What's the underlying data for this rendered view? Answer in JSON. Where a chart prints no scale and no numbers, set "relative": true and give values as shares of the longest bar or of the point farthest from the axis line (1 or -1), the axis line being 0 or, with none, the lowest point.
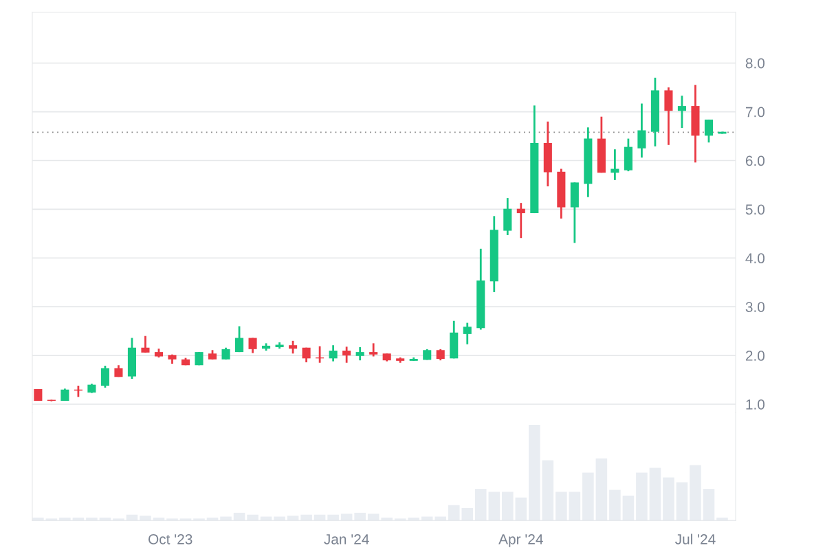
{
  "chart_data": [
    {
      "type": "candlestick",
      "x": [
        "2023-07-24",
        "2023-07-31",
        "2023-08-07",
        "2023-08-14",
        "2023-08-21",
        "2023-08-28",
        "2023-09-04",
        "2023-09-11",
        "2023-09-18",
        "2023-09-25",
        "2023-10-02",
        "2023-10-09",
        "2023-10-16",
        "2023-10-23",
        "2023-10-30",
        "2023-11-06",
        "2023-11-13",
        "2023-11-20",
        "2023-11-27",
        "2023-12-04",
        "2023-12-11",
        "2023-12-18",
        "2023-12-25",
        "2024-01-01",
        "2024-01-08",
        "2024-01-15",
        "2024-01-22",
        "2024-01-29",
        "2024-02-05",
        "2024-02-12",
        "2024-02-19",
        "2024-02-26",
        "2024-03-04",
        "2024-03-11",
        "2024-03-18",
        "2024-03-25",
        "2024-04-01",
        "2024-04-08",
        "2024-04-15",
        "2024-04-22",
        "2024-04-29",
        "2024-05-06",
        "2024-05-13",
        "2024-05-20",
        "2024-05-27",
        "2024-06-03",
        "2024-06-10",
        "2024-06-17",
        "2024-06-24",
        "2024-07-01",
        "2024-07-08",
        "2024-07-15"
      ],
      "ohlc": [
        [
          1.31,
          1.31,
          1.07,
          1.07
        ],
        [
          1.09,
          1.09,
          1.06,
          1.07
        ],
        [
          1.07,
          1.32,
          1.07,
          1.3
        ],
        [
          1.3,
          1.38,
          1.15,
          1.28
        ],
        [
          1.24,
          1.42,
          1.23,
          1.4
        ],
        [
          1.38,
          1.79,
          1.34,
          1.74
        ],
        [
          1.74,
          1.8,
          1.56,
          1.56
        ],
        [
          1.57,
          2.36,
          1.52,
          2.16
        ],
        [
          2.16,
          2.4,
          2.06,
          2.06
        ],
        [
          2.07,
          2.14,
          1.96,
          1.98
        ],
        [
          2.01,
          2.02,
          1.83,
          1.92
        ],
        [
          1.92,
          1.95,
          1.8,
          1.8
        ],
        [
          1.8,
          2.07,
          1.8,
          2.07
        ],
        [
          2.04,
          2.11,
          1.92,
          1.92
        ],
        [
          1.92,
          2.16,
          1.92,
          2.13
        ],
        [
          2.07,
          2.6,
          2.07,
          2.36
        ],
        [
          2.36,
          2.36,
          2.05,
          2.13
        ],
        [
          2.14,
          2.25,
          2.1,
          2.2
        ],
        [
          2.17,
          2.27,
          2.14,
          2.22
        ],
        [
          2.21,
          2.3,
          2.04,
          2.14
        ],
        [
          2.16,
          2.16,
          1.86,
          1.94
        ],
        [
          1.96,
          2.19,
          1.85,
          1.94
        ],
        [
          1.94,
          2.21,
          1.88,
          2.1
        ],
        [
          2.1,
          2.18,
          1.85,
          2.0
        ],
        [
          1.99,
          2.17,
          1.9,
          2.07
        ],
        [
          2.07,
          2.25,
          1.98,
          2.02
        ],
        [
          2.04,
          2.04,
          1.88,
          1.9
        ],
        [
          1.94,
          1.96,
          1.85,
          1.89
        ],
        [
          1.89,
          1.96,
          1.89,
          1.93
        ],
        [
          1.91,
          2.13,
          1.91,
          2.11
        ],
        [
          2.11,
          2.13,
          1.9,
          1.93
        ],
        [
          1.94,
          2.71,
          1.94,
          2.47
        ],
        [
          2.44,
          2.67,
          2.23,
          2.59
        ],
        [
          2.56,
          4.19,
          2.53,
          3.54
        ],
        [
          3.52,
          4.86,
          3.3,
          4.58
        ],
        [
          4.56,
          5.23,
          4.47,
          5.01
        ],
        [
          5.01,
          5.13,
          4.41,
          4.92
        ],
        [
          4.92,
          7.13,
          4.92,
          6.36
        ],
        [
          6.36,
          6.8,
          5.47,
          5.76
        ],
        [
          5.77,
          5.83,
          4.81,
          5.04
        ],
        [
          5.04,
          5.55,
          4.31,
          5.55
        ],
        [
          5.52,
          6.68,
          5.25,
          6.45
        ],
        [
          6.45,
          6.9,
          5.75,
          5.75
        ],
        [
          5.75,
          6.23,
          5.6,
          5.83
        ],
        [
          5.8,
          6.45,
          5.78,
          6.28
        ],
        [
          6.25,
          7.17,
          6.06,
          6.62
        ],
        [
          6.59,
          7.7,
          6.29,
          7.44
        ],
        [
          7.44,
          7.5,
          6.32,
          7.02
        ],
        [
          7.02,
          7.33,
          6.67,
          7.12
        ],
        [
          7.12,
          7.55,
          5.96,
          6.51
        ],
        [
          6.51,
          6.84,
          6.37,
          6.84
        ],
        [
          6.55,
          6.59,
          6.55,
          6.59
        ]
      ],
      "colors": [
        "#ea3943",
        "#ea3943",
        "#16c784",
        "#ea3943",
        "#16c784",
        "#16c784",
        "#ea3943",
        "#16c784",
        "#ea3943",
        "#ea3943",
        "#ea3943",
        "#ea3943",
        "#16c784",
        "#ea3943",
        "#16c784",
        "#16c784",
        "#ea3943",
        "#16c784",
        "#16c784",
        "#ea3943",
        "#ea3943",
        "#ea3943",
        "#16c784",
        "#ea3943",
        "#16c784",
        "#ea3943",
        "#ea3943",
        "#ea3943",
        "#16c784",
        "#16c784",
        "#ea3943",
        "#16c784",
        "#16c784",
        "#16c784",
        "#16c784",
        "#16c784",
        "#ea3943",
        "#16c784",
        "#ea3943",
        "#ea3943",
        "#16c784",
        "#16c784",
        "#ea3943",
        "#16c784",
        "#16c784",
        "#16c784",
        "#16c784",
        "#ea3943",
        "#16c784",
        "#ea3943",
        "#16c784",
        "#16c784"
      ],
      "xlim": [
        "2023-07-21",
        "2024-07-22"
      ],
      "ylim": [
        0.83,
        9.04
      ],
      "yticks": [
        {
          "value": 1,
          "label": "1.0"
        },
        {
          "value": 2,
          "label": "2.0"
        },
        {
          "value": 3,
          "label": "3.0"
        },
        {
          "value": 4,
          "label": "4.0"
        },
        {
          "value": 5,
          "label": "5.0"
        },
        {
          "value": 6,
          "label": "6.0"
        },
        {
          "value": 7,
          "label": "7.0"
        },
        {
          "value": 8,
          "label": "8.0"
        }
      ],
      "ref_lines": [
        {
          "axis": "y",
          "value": 6.58,
          "color": "#8c8c8c",
          "line_style": "dotted"
        }
      ],
      "grid": "y",
      "tick_labels": "y"
    },
    {
      "type": "bar",
      "x": [
        "2023-07-24",
        "2023-07-31",
        "2023-08-07",
        "2023-08-14",
        "2023-08-21",
        "2023-08-28",
        "2023-09-04",
        "2023-09-11",
        "2023-09-18",
        "2023-09-25",
        "2023-10-02",
        "2023-10-09",
        "2023-10-16",
        "2023-10-23",
        "2023-10-30",
        "2023-11-06",
        "2023-11-13",
        "2023-11-20",
        "2023-11-27",
        "2023-12-04",
        "2023-12-11",
        "2023-12-18",
        "2023-12-25",
        "2024-01-01",
        "2024-01-08",
        "2024-01-15",
        "2024-01-22",
        "2024-01-29",
        "2024-02-05",
        "2024-02-12",
        "2024-02-19",
        "2024-02-26",
        "2024-03-04",
        "2024-03-11",
        "2024-03-18",
        "2024-03-25",
        "2024-04-01",
        "2024-04-08",
        "2024-04-15",
        "2024-04-22",
        "2024-04-29",
        "2024-05-06",
        "2024-05-13",
        "2024-05-20",
        "2024-05-27",
        "2024-06-03",
        "2024-06-10",
        "2024-06-17",
        "2024-06-24",
        "2024-07-01",
        "2024-07-08",
        "2024-07-15"
      ],
      "values": [
        0.03,
        0.02,
        0.03,
        0.03,
        0.03,
        0.03,
        0.02,
        0.06,
        0.05,
        0.03,
        0.02,
        0.02,
        0.02,
        0.03,
        0.04,
        0.08,
        0.06,
        0.04,
        0.04,
        0.05,
        0.06,
        0.06,
        0.06,
        0.07,
        0.08,
        0.07,
        0.03,
        0.02,
        0.03,
        0.04,
        0.04,
        0.16,
        0.13,
        0.33,
        0.3,
        0.3,
        0.24,
        1,
        0.63,
        0.3,
        0.3,
        0.5,
        0.65,
        0.32,
        0.26,
        0.5,
        0.55,
        0.45,
        0.4,
        0.58,
        0.33,
        0.03
      ],
      "color": "#e9edf2",
      "relative": true,
      "xlim": [
        "2023-07-21",
        "2024-07-22"
      ],
      "xticks": [
        {
          "value": "2023-10-01",
          "label": "Oct '23"
        },
        {
          "value": "2024-01-01",
          "label": "Jan '24"
        },
        {
          "value": "2024-04-01",
          "label": "Apr '24"
        },
        {
          "value": "2024-07-01",
          "label": "Jul '24"
        }
      ],
      "tick_labels": "x"
    }
  ]
}
